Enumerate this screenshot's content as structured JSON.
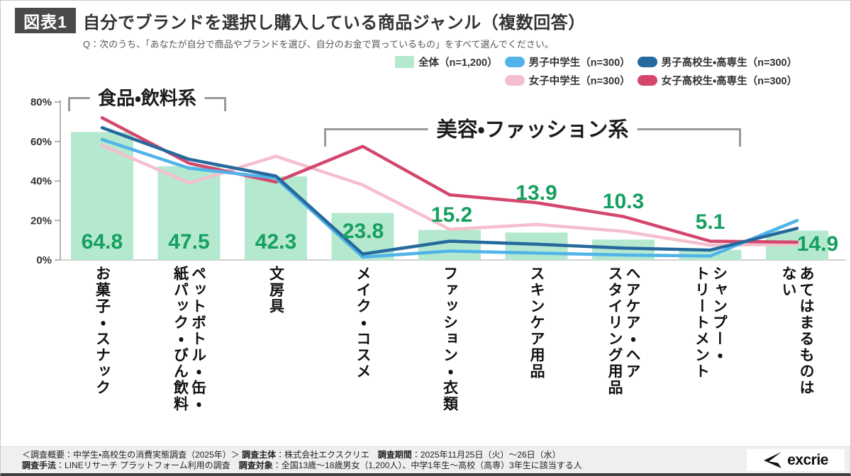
{
  "header": {
    "badge": "図表1",
    "title": "自分でブランドを選択し購入している商品ジャンル（複数回答）",
    "question": "Q：次のうち、「あなたが自分で商品やブランドを選び、自分のお金で買っているもの」をすべて選んでください。"
  },
  "legend": {
    "items": [
      {
        "label": "全体（n=1,200）",
        "color": "#b4e9cf",
        "shape": "square"
      },
      {
        "label": "男子中学生（n=300）",
        "color": "#51b4e9",
        "shape": "pill"
      },
      {
        "label": "男子高校生・高専生（n=300）",
        "color": "#26699c",
        "shape": "pill"
      },
      {
        "label": "女子中学生（n=300）",
        "color": "#f5bece",
        "shape": "pill"
      },
      {
        "label": "女子高校生・高専生（n=300）",
        "color": "#d4476d",
        "shape": "pill"
      }
    ]
  },
  "annotations": {
    "group1": "食品・飲料系",
    "group2": "美容・ファッション系"
  },
  "chart_data": {
    "type": "combo-bar-line",
    "categories": [
      "お菓子・スナック",
      "ペットボトル・缶・\n紙パック・びん飲料",
      "文房具",
      "メイク・コスメ",
      "ファッション・衣類",
      "スキンケア用品",
      "ヘアケア・ヘア\nスタイリング用品",
      "シャンプー・\nトリートメント",
      "あてはまるものは\nない"
    ],
    "bar_series": {
      "name": "全体（n=1,200）",
      "color": "#b4e9cf",
      "label_color": "#15a05f",
      "values": [
        64.8,
        47.5,
        42.3,
        23.8,
        15.2,
        13.9,
        10.3,
        5.1,
        14.9
      ]
    },
    "line_series": [
      {
        "name": "女子中学生（n=300）",
        "color": "#f5bece",
        "values": [
          58,
          39,
          52.5,
          38,
          15.5,
          18,
          14.5,
          7.5,
          8
        ]
      },
      {
        "name": "女子高校生・高専生（n=300）",
        "color": "#d4476d",
        "values": [
          72,
          49,
          39.5,
          57.5,
          33,
          29,
          22,
          9.5,
          9
        ]
      },
      {
        "name": "男子中学生（n=300）",
        "color": "#51b4e9",
        "values": [
          61,
          46.5,
          41.5,
          1.5,
          4.5,
          3.5,
          2.5,
          2,
          20
        ]
      },
      {
        "name": "男子高校生・高専生（n=300）",
        "color": "#26699c",
        "values": [
          67,
          51,
          42.5,
          3,
          9.5,
          8,
          6,
          5,
          16
        ]
      }
    ],
    "ylim": [
      0,
      80
    ],
    "yticks": [
      "0%",
      "20%",
      "40%",
      "60%",
      "80%"
    ],
    "grid": false,
    "legend_position": "top-right"
  },
  "footer": {
    "line1": [
      {
        "text": "＜調査概要：中学生・高校生の消費実態調査（2025年）＞ ",
        "bold": false
      },
      {
        "text": "調査主体",
        "bold": true
      },
      {
        "text": "：株式会社エクスクリエ　",
        "bold": false
      },
      {
        "text": "調査期間",
        "bold": true
      },
      {
        "text": "：2025年11月25日（火）～26日（水）",
        "bold": false
      }
    ],
    "line2": [
      {
        "text": "調査手法",
        "bold": true
      },
      {
        "text": "：LINEリサーチ プラットフォーム利用の調査　",
        "bold": false
      },
      {
        "text": "調査対象",
        "bold": true
      },
      {
        "text": "：全国13歳～18歳男女（1,200人）、中学1年生～高校（高専）3年生に該当する人",
        "bold": false
      }
    ],
    "logo": "excrie"
  }
}
